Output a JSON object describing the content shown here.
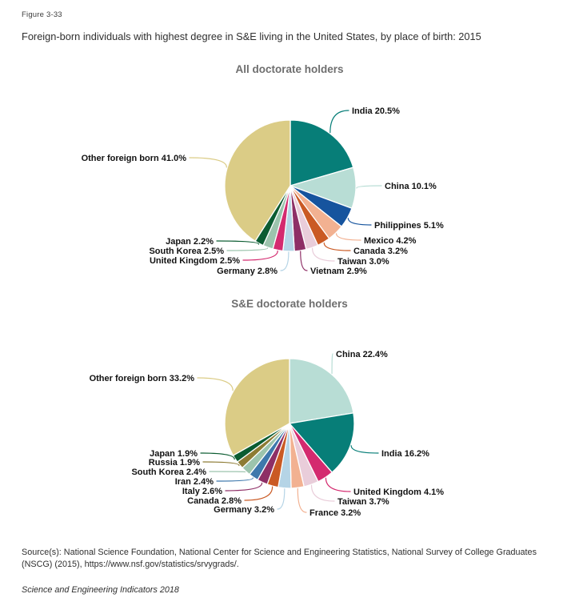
{
  "page": {
    "figure_label": "Figure 3-33",
    "title": "Foreign-born individuals with highest degree in S&E living in the United States, by place of birth: 2015",
    "source": "Source(s): National Science Foundation, National Center for Science and Engineering Statistics, National Survey of College Graduates (NSCG) (2015), https://www.nsf.gov/statistics/srvygrads/.",
    "footer": "Science and Engineering Indicators 2018"
  },
  "chart_data": [
    {
      "type": "pie",
      "title": "All doctorate holders",
      "units": "percent of foreign-born individuals",
      "start_angle_deg": 0,
      "direction": "clockwise",
      "label_format": "{label} {value}%",
      "slices": [
        {
          "label": "India",
          "value": 20.5,
          "color": "#077e78"
        },
        {
          "label": "China",
          "value": 10.1,
          "color": "#b8ddd5"
        },
        {
          "label": "Philippines",
          "value": 5.1,
          "color": "#16549e"
        },
        {
          "label": "Mexico",
          "value": 4.2,
          "color": "#f2b191"
        },
        {
          "label": "Canada",
          "value": 3.2,
          "color": "#ca5a24"
        },
        {
          "label": "Taiwan",
          "value": 3.0,
          "color": "#e9cdda"
        },
        {
          "label": "Vietnam",
          "value": 2.9,
          "color": "#8e2f66"
        },
        {
          "label": "Germany",
          "value": 2.8,
          "color": "#b5d4e6"
        },
        {
          "label": "United Kingdom",
          "value": 2.5,
          "color": "#d42a6f"
        },
        {
          "label": "South Korea",
          "value": 2.5,
          "color": "#9cc4ad"
        },
        {
          "label": "Japan",
          "value": 2.2,
          "color": "#0b5c31"
        },
        {
          "label": "Other foreign born",
          "value": 41.0,
          "color": "#dbcc86"
        }
      ]
    },
    {
      "type": "pie",
      "title": "S&E doctorate holders",
      "units": "percent of foreign-born individuals",
      "start_angle_deg": 0,
      "direction": "clockwise",
      "label_format": "{label} {value}%",
      "slices": [
        {
          "label": "China",
          "value": 22.4,
          "color": "#b8ddd5"
        },
        {
          "label": "India",
          "value": 16.2,
          "color": "#077e78"
        },
        {
          "label": "United Kingdom",
          "value": 4.1,
          "color": "#d42a6f"
        },
        {
          "label": "Taiwan",
          "value": 3.7,
          "color": "#e9cdda"
        },
        {
          "label": "France",
          "value": 3.2,
          "color": "#f2b191"
        },
        {
          "label": "Germany",
          "value": 3.2,
          "color": "#b5d4e6"
        },
        {
          "label": "Canada",
          "value": 2.8,
          "color": "#ca5a24"
        },
        {
          "label": "Italy",
          "value": 2.6,
          "color": "#8e2f66"
        },
        {
          "label": "Iran",
          "value": 2.4,
          "color": "#3e78ac"
        },
        {
          "label": "South Korea",
          "value": 2.4,
          "color": "#9cc4ad"
        },
        {
          "label": "Russia",
          "value": 1.9,
          "color": "#8d7b33"
        },
        {
          "label": "Japan",
          "value": 1.9,
          "color": "#0b5c31"
        },
        {
          "label": "Other foreign born",
          "value": 33.2,
          "color": "#dbcc86"
        }
      ]
    }
  ]
}
